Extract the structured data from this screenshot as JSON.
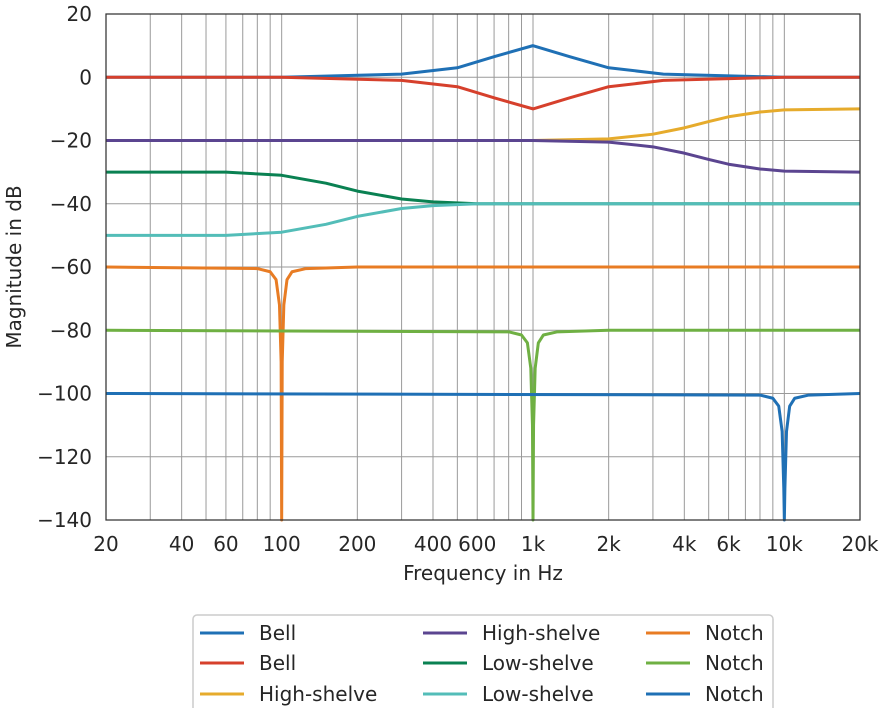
{
  "chart_data": {
    "type": "line",
    "title": "",
    "xlabel": "Frequency in Hz",
    "ylabel": "Magnitude in dB",
    "xscale": "log",
    "xlim": [
      20,
      20000
    ],
    "ylim": [
      -140,
      20
    ],
    "x_ticks": [
      {
        "value": 20,
        "label": "20"
      },
      {
        "value": 40,
        "label": "40"
      },
      {
        "value": 60,
        "label": "60"
      },
      {
        "value": 100,
        "label": "100"
      },
      {
        "value": 200,
        "label": "200"
      },
      {
        "value": 400,
        "label": "400"
      },
      {
        "value": 600,
        "label": "600"
      },
      {
        "value": 1000,
        "label": "1k"
      },
      {
        "value": 2000,
        "label": "2k"
      },
      {
        "value": 4000,
        "label": "4k"
      },
      {
        "value": 6000,
        "label": "6k"
      },
      {
        "value": 10000,
        "label": "10k"
      },
      {
        "value": 20000,
        "label": "20k"
      }
    ],
    "y_ticks": [
      {
        "value": 20,
        "label": "20"
      },
      {
        "value": 0,
        "label": "0"
      },
      {
        "value": -20,
        "label": "−20"
      },
      {
        "value": -40,
        "label": "−40"
      },
      {
        "value": -60,
        "label": "−60"
      },
      {
        "value": -80,
        "label": "−80"
      },
      {
        "value": -100,
        "label": "−100"
      },
      {
        "value": -120,
        "label": "−120"
      },
      {
        "value": -140,
        "label": "−140"
      }
    ],
    "grid": true,
    "legend_position": "bottom-center",
    "legend_columns": 3,
    "series": [
      {
        "name": "Bell",
        "color": "#1f70b5",
        "x": [
          20,
          100,
          300,
          500,
          700,
          1000,
          1400,
          2000,
          3300,
          10000,
          20000
        ],
        "y": [
          0,
          0,
          1,
          3,
          6.5,
          10,
          6.5,
          3,
          1,
          0,
          0
        ]
      },
      {
        "name": "Bell",
        "color": "#d6402c",
        "x": [
          20,
          100,
          300,
          500,
          700,
          1000,
          1400,
          2000,
          3300,
          10000,
          20000
        ],
        "y": [
          0,
          0,
          -1,
          -3,
          -6.5,
          -10,
          -6.5,
          -3,
          -1,
          0,
          0
        ]
      },
      {
        "name": "High-shelve",
        "color": "#e6ab2c",
        "x": [
          20,
          1000,
          2000,
          3000,
          4000,
          5000,
          6000,
          8000,
          10000,
          20000
        ],
        "y": [
          -20,
          -20,
          -19.5,
          -18,
          -16,
          -14,
          -12.5,
          -11,
          -10.3,
          -10
        ]
      },
      {
        "name": "High-shelve",
        "color": "#5b4590",
        "x": [
          20,
          1000,
          2000,
          3000,
          4000,
          5000,
          6000,
          8000,
          10000,
          20000
        ],
        "y": [
          -20,
          -20,
          -20.5,
          -22,
          -24,
          -26,
          -27.5,
          -29,
          -29.7,
          -30
        ]
      },
      {
        "name": "Low-shelve",
        "color": "#0a8152",
        "x": [
          20,
          60,
          100,
          150,
          200,
          300,
          400,
          600,
          1000,
          20000
        ],
        "y": [
          -30,
          -30,
          -31,
          -33.5,
          -36,
          -38.5,
          -39.4,
          -40,
          -40,
          -40
        ]
      },
      {
        "name": "Low-shelve",
        "color": "#53bdb8",
        "x": [
          20,
          60,
          100,
          150,
          200,
          300,
          400,
          600,
          1000,
          20000
        ],
        "y": [
          -50,
          -50,
          -49,
          -46.5,
          -44,
          -41.5,
          -40.6,
          -40,
          -40,
          -40
        ]
      },
      {
        "name": "Notch",
        "color": "#e87c24",
        "x": [
          20,
          80,
          90,
          95,
          98,
          99.5,
          100,
          100.5,
          102,
          105,
          110,
          125,
          200,
          20000
        ],
        "y": [
          -60,
          -60.5,
          -61.5,
          -64,
          -72,
          -90,
          -140,
          -90,
          -72,
          -64,
          -61.5,
          -60.5,
          -60,
          -60
        ]
      },
      {
        "name": "Notch",
        "color": "#6fb043",
        "x": [
          20,
          800,
          900,
          950,
          980,
          995,
          1000,
          1005,
          1020,
          1050,
          1100,
          1250,
          2000,
          20000
        ],
        "y": [
          -80,
          -80.5,
          -81.5,
          -84,
          -92,
          -110,
          -140,
          -110,
          -92,
          -84,
          -81.5,
          -80.5,
          -80,
          -80
        ]
      },
      {
        "name": "Notch",
        "color": "#1f70b5",
        "x": [
          20,
          8000,
          9000,
          9500,
          9800,
          9950,
          10000,
          10050,
          10200,
          10500,
          11000,
          12500,
          20000
        ],
        "y": [
          -100,
          -100.5,
          -101.5,
          -104,
          -112,
          -130,
          -140,
          -130,
          -112,
          -104,
          -101.5,
          -100.5,
          -100
        ]
      }
    ]
  }
}
